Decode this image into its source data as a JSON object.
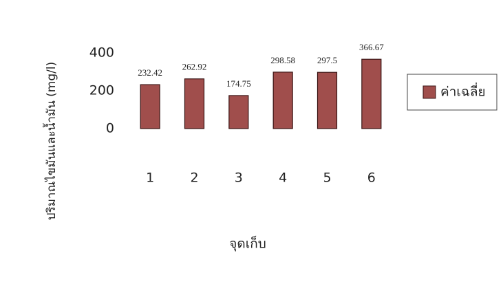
{
  "chart_data": {
    "type": "bar",
    "x_label": "จุดเก็บ",
    "y_label": "ปริมาณไขมันและน้ำมัน (mg/l)",
    "categories": [
      "1",
      "2",
      "3",
      "4",
      "5",
      "6"
    ],
    "series": [
      {
        "name": "ค่าเฉลี่ย",
        "color": "#a04e4c",
        "values": [
          232.42,
          262.92,
          174.75,
          298.58,
          297.5,
          366.67
        ]
      }
    ],
    "ylim": [
      0,
      400
    ],
    "yticks": [
      0,
      200,
      400
    ],
    "grid": false,
    "legend": "right"
  }
}
